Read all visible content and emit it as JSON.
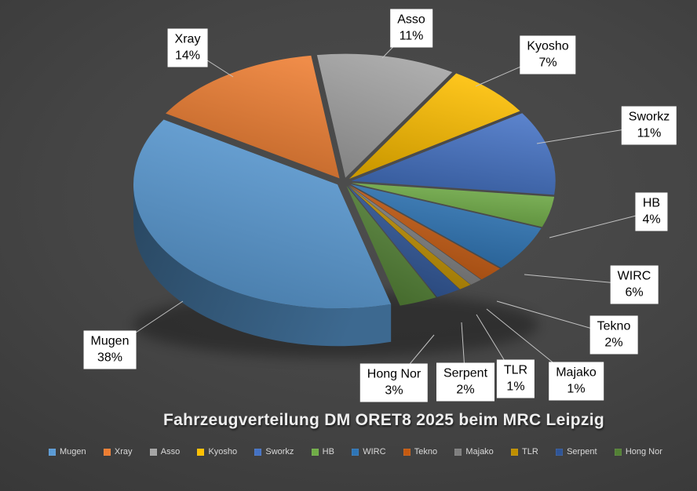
{
  "chart_data": {
    "type": "pie",
    "style": "3d-exploded",
    "title": "Fahrzeugverteilung DM ORET8 2025 beim MRC Leipzig",
    "unit": "%",
    "legend_position": "bottom",
    "categories": [
      "Mugen",
      "Xray",
      "Asso",
      "Kyosho",
      "Sworkz",
      "HB",
      "WIRC",
      "Tekno",
      "Majako",
      "TLR",
      "Serpent",
      "Hong Nor"
    ],
    "series": [
      {
        "name": "Mugen",
        "value": 38,
        "label": "38%",
        "color": "#5B9BD5"
      },
      {
        "name": "Xray",
        "value": 14,
        "label": "14%",
        "color": "#ED7D31"
      },
      {
        "name": "Asso",
        "value": 11,
        "label": "11%",
        "color": "#A5A5A5"
      },
      {
        "name": "Kyosho",
        "value": 7,
        "label": "7%",
        "color": "#FFC000"
      },
      {
        "name": "Sworkz",
        "value": 11,
        "label": "11%",
        "color": "#4472C4"
      },
      {
        "name": "HB",
        "value": 4,
        "label": "4%",
        "color": "#70AD47"
      },
      {
        "name": "WIRC",
        "value": 6,
        "label": "6%",
        "color": "#2E75B6"
      },
      {
        "name": "Tekno",
        "value": 2,
        "label": "2%",
        "color": "#C55A11"
      },
      {
        "name": "Majako",
        "value": 1,
        "label": "1%",
        "color": "#7F7F7F"
      },
      {
        "name": "TLR",
        "value": 1,
        "label": "1%",
        "color": "#BF8F00"
      },
      {
        "name": "Serpent",
        "value": 2,
        "label": "2%",
        "color": "#2F5597"
      },
      {
        "name": "Hong Nor",
        "value": 3,
        "label": "3%",
        "color": "#538135"
      }
    ]
  },
  "colors": {
    "background_center": "#4d4d4d",
    "background_edge": "#292929",
    "label_box_bg": "#ffffff",
    "label_text": "#000000",
    "leader_line": "#c2c2c2",
    "legend_text": "#d9d9d9",
    "title_text": "#efefef"
  }
}
